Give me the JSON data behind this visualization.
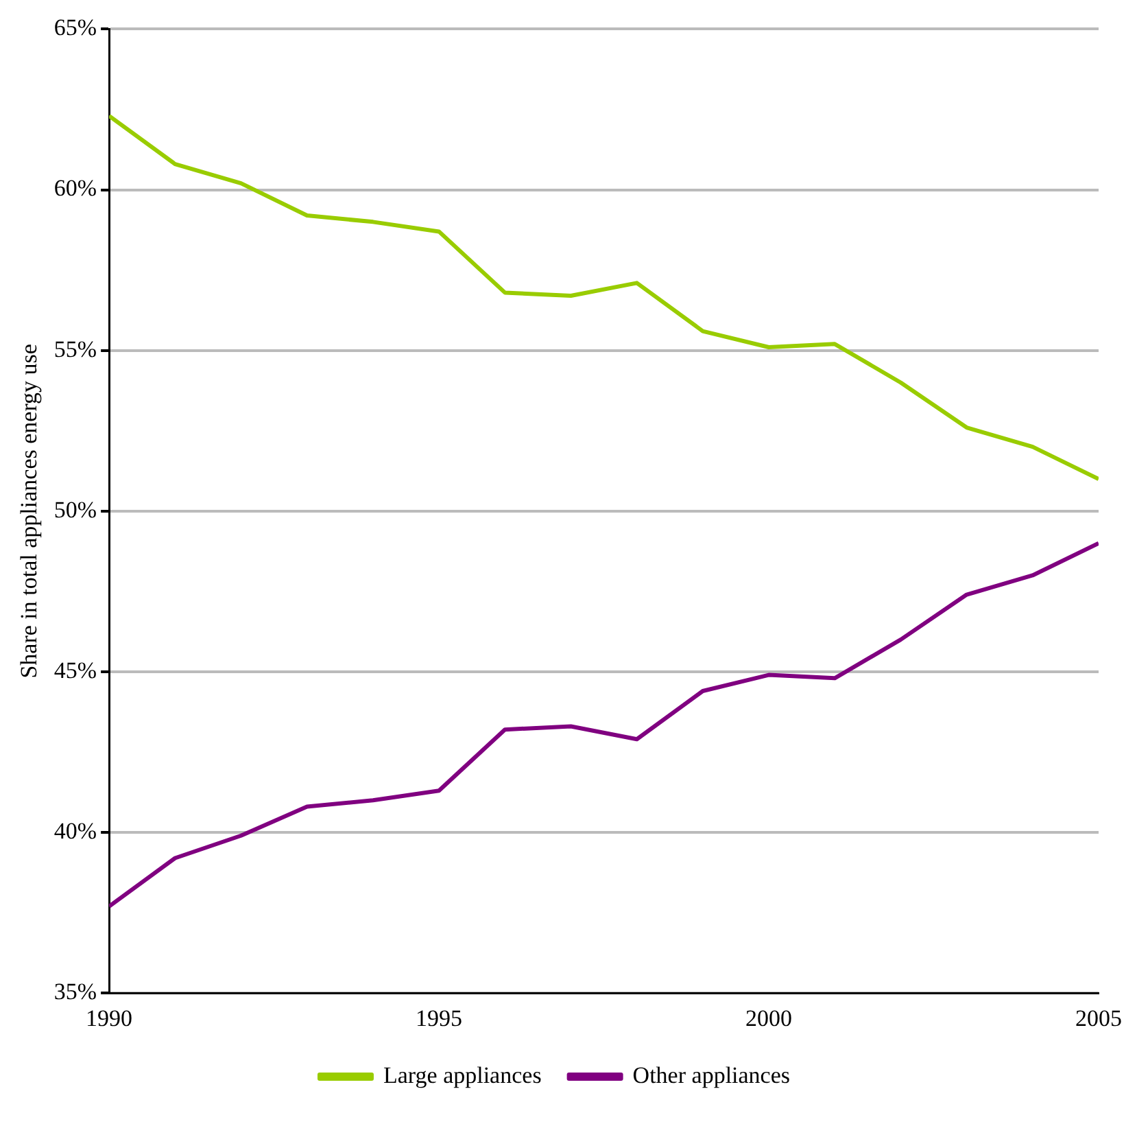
{
  "chart_data": {
    "type": "line",
    "ylabel": "Share in total appliances energy use",
    "x": [
      1990,
      1991,
      1992,
      1993,
      1994,
      1995,
      1996,
      1997,
      1998,
      1999,
      2000,
      2001,
      2002,
      2003,
      2004,
      2005
    ],
    "series": [
      {
        "name": "Large appliances",
        "color": "#99cc00",
        "values": [
          62.3,
          60.8,
          60.2,
          59.2,
          59.0,
          58.7,
          56.8,
          56.7,
          57.1,
          55.6,
          55.1,
          55.2,
          54.0,
          52.6,
          52.0,
          51.0
        ]
      },
      {
        "name": "Other appliances",
        "color": "#800080",
        "values": [
          37.7,
          39.2,
          39.9,
          40.8,
          41.0,
          41.3,
          43.2,
          43.3,
          42.9,
          44.4,
          44.9,
          44.8,
          46.0,
          47.4,
          48.0,
          49.0
        ]
      }
    ],
    "xlim": [
      1990,
      2005
    ],
    "xticks": [
      1990,
      1995,
      2000,
      2005
    ],
    "ylim": [
      35,
      65
    ],
    "yticks": [
      {
        "value": 35,
        "label": "35%"
      },
      {
        "value": 40,
        "label": "40%"
      },
      {
        "value": 45,
        "label": "45%"
      },
      {
        "value": 50,
        "label": "50%"
      },
      {
        "value": 55,
        "label": "55%"
      },
      {
        "value": 60,
        "label": "60%"
      },
      {
        "value": 65,
        "label": "65%"
      }
    ],
    "grid": "y",
    "legend": "bottom",
    "marker": "none",
    "line_style": "solid"
  }
}
